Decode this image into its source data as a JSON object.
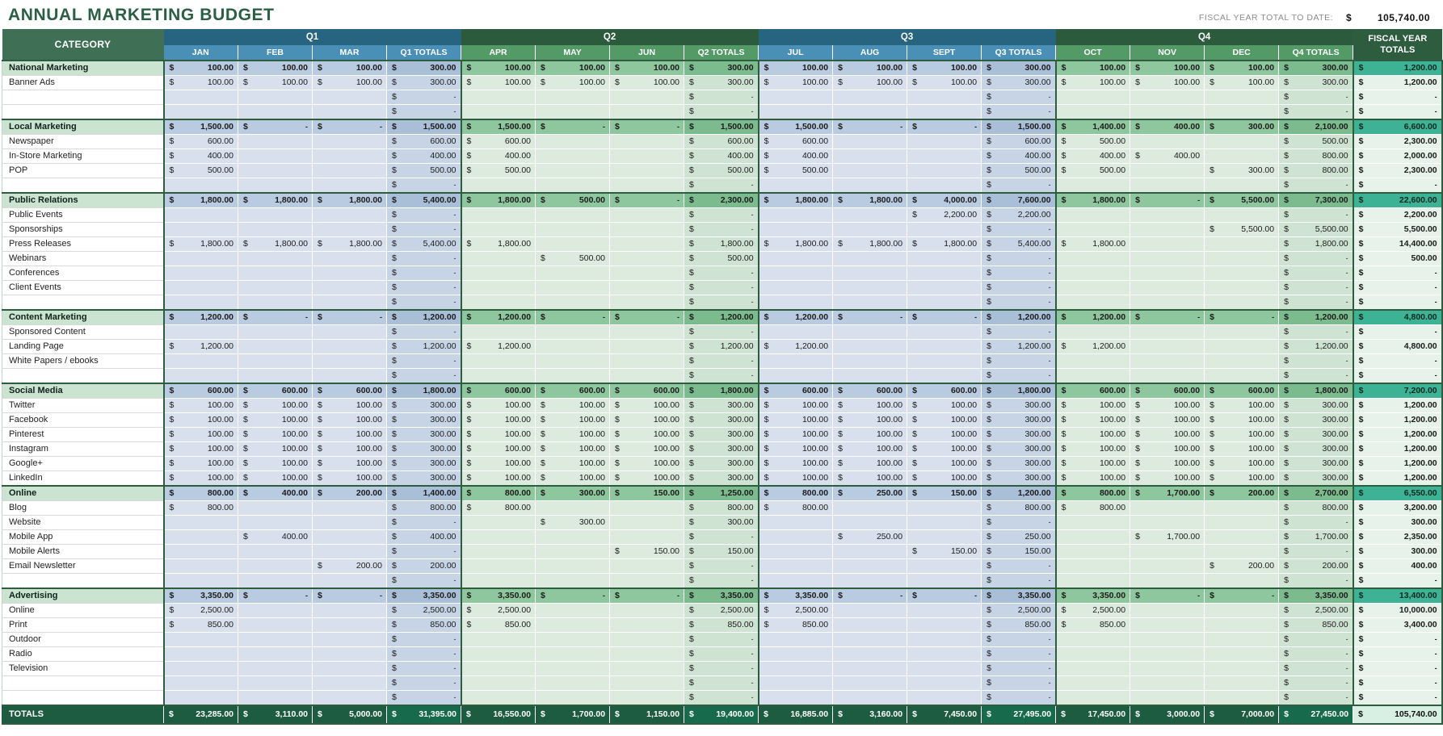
{
  "title": "ANNUAL MARKETING BUDGET",
  "currency": "$",
  "fiscal_note": {
    "label": "FISCAL YEAR TOTAL TO DATE:",
    "currency": "$",
    "value": "105,740.00"
  },
  "colors": {
    "brand_green": "#2d5c3e",
    "quarter_blue": "#26647f",
    "quarter_green": "#2b5a3c",
    "month_blue": "#4a8fb5",
    "month_green": "#539a67",
    "fiscal_teal": "#3eb295",
    "totals_row_green": "#1e5c41"
  },
  "table": {
    "header": {
      "category": "CATEGORY",
      "fiscal_col": "FISCAL YEAR TOTALS",
      "quarters": [
        {
          "label": "Q1",
          "theme": "blue",
          "months": [
            "JAN",
            "FEB",
            "MAR",
            "Q1 TOTALS"
          ]
        },
        {
          "label": "Q2",
          "theme": "green",
          "months": [
            "APR",
            "MAY",
            "JUN",
            "Q2 TOTALS"
          ]
        },
        {
          "label": "Q3",
          "theme": "blue",
          "months": [
            "JUL",
            "AUG",
            "SEPT",
            "Q3 TOTALS"
          ]
        },
        {
          "label": "Q4",
          "theme": "green",
          "months": [
            "OCT",
            "NOV",
            "DEC",
            "Q4 TOTALS"
          ]
        }
      ]
    },
    "rows": [
      {
        "label": "National Marketing",
        "type": "category",
        "cells": [
          "100.00",
          "100.00",
          "100.00",
          "300.00",
          "100.00",
          "100.00",
          "100.00",
          "300.00",
          "100.00",
          "100.00",
          "100.00",
          "300.00",
          "100.00",
          "100.00",
          "100.00",
          "300.00",
          "1,200.00"
        ]
      },
      {
        "label": "Banner Ads",
        "type": "item",
        "cells": [
          "100.00",
          "100.00",
          "100.00",
          "300.00",
          "100.00",
          "100.00",
          "100.00",
          "300.00",
          "100.00",
          "100.00",
          "100.00",
          "300.00",
          "100.00",
          "100.00",
          "100.00",
          "300.00",
          "1,200.00"
        ]
      },
      {
        "label": "",
        "type": "blank",
        "cells": [
          "",
          "",
          "",
          "-",
          "",
          "",
          "",
          "-",
          "",
          "",
          "",
          "-",
          "",
          "",
          "",
          "-",
          "-"
        ]
      },
      {
        "label": "",
        "type": "blank",
        "cells": [
          "",
          "",
          "",
          "-",
          "",
          "",
          "",
          "-",
          "",
          "",
          "",
          "-",
          "",
          "",
          "",
          "-",
          "-"
        ]
      },
      {
        "label": "Local Marketing",
        "type": "category",
        "cells": [
          "1,500.00",
          "-",
          "-",
          "1,500.00",
          "1,500.00",
          "-",
          "-",
          "1,500.00",
          "1,500.00",
          "-",
          "-",
          "1,500.00",
          "1,400.00",
          "400.00",
          "300.00",
          "2,100.00",
          "6,600.00"
        ]
      },
      {
        "label": "Newspaper",
        "type": "item",
        "cells": [
          "600.00",
          "",
          "",
          "600.00",
          "600.00",
          "",
          "",
          "600.00",
          "600.00",
          "",
          "",
          "600.00",
          "500.00",
          "",
          "",
          "500.00",
          "2,300.00"
        ]
      },
      {
        "label": "In-Store Marketing",
        "type": "item",
        "cells": [
          "400.00",
          "",
          "",
          "400.00",
          "400.00",
          "",
          "",
          "400.00",
          "400.00",
          "",
          "",
          "400.00",
          "400.00",
          "400.00",
          "",
          "800.00",
          "2,000.00"
        ]
      },
      {
        "label": "POP",
        "type": "item",
        "cells": [
          "500.00",
          "",
          "",
          "500.00",
          "500.00",
          "",
          "",
          "500.00",
          "500.00",
          "",
          "",
          "500.00",
          "500.00",
          "",
          "300.00",
          "800.00",
          "2,300.00"
        ]
      },
      {
        "label": "",
        "type": "blank",
        "cells": [
          "",
          "",
          "",
          "-",
          "",
          "",
          "",
          "-",
          "",
          "",
          "",
          "-",
          "",
          "",
          "",
          "-",
          "-"
        ]
      },
      {
        "label": "Public Relations",
        "type": "category",
        "cells": [
          "1,800.00",
          "1,800.00",
          "1,800.00",
          "5,400.00",
          "1,800.00",
          "500.00",
          "-",
          "2,300.00",
          "1,800.00",
          "1,800.00",
          "4,000.00",
          "7,600.00",
          "1,800.00",
          "-",
          "5,500.00",
          "7,300.00",
          "22,600.00"
        ]
      },
      {
        "label": "Public Events",
        "type": "item",
        "cells": [
          "",
          "",
          "",
          "-",
          "",
          "",
          "",
          "-",
          "",
          "",
          "2,200.00",
          "2,200.00",
          "",
          "",
          "",
          "-",
          "2,200.00"
        ]
      },
      {
        "label": "Sponsorships",
        "type": "item",
        "cells": [
          "",
          "",
          "",
          "-",
          "",
          "",
          "",
          "-",
          "",
          "",
          "",
          "-",
          "",
          "",
          "5,500.00",
          "5,500.00",
          "5,500.00"
        ]
      },
      {
        "label": "Press Releases",
        "type": "item",
        "cells": [
          "1,800.00",
          "1,800.00",
          "1,800.00",
          "5,400.00",
          "1,800.00",
          "",
          "",
          "1,800.00",
          "1,800.00",
          "1,800.00",
          "1,800.00",
          "5,400.00",
          "1,800.00",
          "",
          "",
          "1,800.00",
          "14,400.00"
        ]
      },
      {
        "label": "Webinars",
        "type": "item",
        "cells": [
          "",
          "",
          "",
          "-",
          "",
          "500.00",
          "",
          "500.00",
          "",
          "",
          "",
          "-",
          "",
          "",
          "",
          "-",
          "500.00"
        ]
      },
      {
        "label": "Conferences",
        "type": "item",
        "cells": [
          "",
          "",
          "",
          "-",
          "",
          "",
          "",
          "-",
          "",
          "",
          "",
          "-",
          "",
          "",
          "",
          "-",
          "-"
        ]
      },
      {
        "label": "Client Events",
        "type": "item",
        "cells": [
          "",
          "",
          "",
          "-",
          "",
          "",
          "",
          "-",
          "",
          "",
          "",
          "-",
          "",
          "",
          "",
          "-",
          "-"
        ]
      },
      {
        "label": "",
        "type": "blank",
        "cells": [
          "",
          "",
          "",
          "-",
          "",
          "",
          "",
          "-",
          "",
          "",
          "",
          "-",
          "",
          "",
          "",
          "-",
          "-"
        ]
      },
      {
        "label": "Content Marketing",
        "type": "category",
        "cells": [
          "1,200.00",
          "-",
          "-",
          "1,200.00",
          "1,200.00",
          "-",
          "-",
          "1,200.00",
          "1,200.00",
          "-",
          "-",
          "1,200.00",
          "1,200.00",
          "-",
          "-",
          "1,200.00",
          "4,800.00"
        ]
      },
      {
        "label": "Sponsored Content",
        "type": "item",
        "cells": [
          "",
          "",
          "",
          "-",
          "",
          "",
          "",
          "-",
          "",
          "",
          "",
          "-",
          "",
          "",
          "",
          "-",
          "-"
        ]
      },
      {
        "label": "Landing Page",
        "type": "item",
        "cells": [
          "1,200.00",
          "",
          "",
          "1,200.00",
          "1,200.00",
          "",
          "",
          "1,200.00",
          "1,200.00",
          "",
          "",
          "1,200.00",
          "1,200.00",
          "",
          "",
          "1,200.00",
          "4,800.00"
        ]
      },
      {
        "label": "White Papers / ebooks",
        "type": "item",
        "cells": [
          "",
          "",
          "",
          "-",
          "",
          "",
          "",
          "-",
          "",
          "",
          "",
          "-",
          "",
          "",
          "",
          "-",
          "-"
        ]
      },
      {
        "label": "",
        "type": "blank",
        "cells": [
          "",
          "",
          "",
          "-",
          "",
          "",
          "",
          "-",
          "",
          "",
          "",
          "-",
          "",
          "",
          "",
          "-",
          "-"
        ]
      },
      {
        "label": "Social Media",
        "type": "category",
        "cells": [
          "600.00",
          "600.00",
          "600.00",
          "1,800.00",
          "600.00",
          "600.00",
          "600.00",
          "1,800.00",
          "600.00",
          "600.00",
          "600.00",
          "1,800.00",
          "600.00",
          "600.00",
          "600.00",
          "1,800.00",
          "7,200.00"
        ]
      },
      {
        "label": "Twitter",
        "type": "item",
        "cells": [
          "100.00",
          "100.00",
          "100.00",
          "300.00",
          "100.00",
          "100.00",
          "100.00",
          "300.00",
          "100.00",
          "100.00",
          "100.00",
          "300.00",
          "100.00",
          "100.00",
          "100.00",
          "300.00",
          "1,200.00"
        ]
      },
      {
        "label": "Facebook",
        "type": "item",
        "cells": [
          "100.00",
          "100.00",
          "100.00",
          "300.00",
          "100.00",
          "100.00",
          "100.00",
          "300.00",
          "100.00",
          "100.00",
          "100.00",
          "300.00",
          "100.00",
          "100.00",
          "100.00",
          "300.00",
          "1,200.00"
        ]
      },
      {
        "label": "Pinterest",
        "type": "item",
        "cells": [
          "100.00",
          "100.00",
          "100.00",
          "300.00",
          "100.00",
          "100.00",
          "100.00",
          "300.00",
          "100.00",
          "100.00",
          "100.00",
          "300.00",
          "100.00",
          "100.00",
          "100.00",
          "300.00",
          "1,200.00"
        ]
      },
      {
        "label": "Instagram",
        "type": "item",
        "cells": [
          "100.00",
          "100.00",
          "100.00",
          "300.00",
          "100.00",
          "100.00",
          "100.00",
          "300.00",
          "100.00",
          "100.00",
          "100.00",
          "300.00",
          "100.00",
          "100.00",
          "100.00",
          "300.00",
          "1,200.00"
        ]
      },
      {
        "label": "Google+",
        "type": "item",
        "cells": [
          "100.00",
          "100.00",
          "100.00",
          "300.00",
          "100.00",
          "100.00",
          "100.00",
          "300.00",
          "100.00",
          "100.00",
          "100.00",
          "300.00",
          "100.00",
          "100.00",
          "100.00",
          "300.00",
          "1,200.00"
        ]
      },
      {
        "label": "LinkedIn",
        "type": "item",
        "cells": [
          "100.00",
          "100.00",
          "100.00",
          "300.00",
          "100.00",
          "100.00",
          "100.00",
          "300.00",
          "100.00",
          "100.00",
          "100.00",
          "300.00",
          "100.00",
          "100.00",
          "100.00",
          "300.00",
          "1,200.00"
        ]
      },
      {
        "label": "Online",
        "type": "category",
        "cells": [
          "800.00",
          "400.00",
          "200.00",
          "1,400.00",
          "800.00",
          "300.00",
          "150.00",
          "1,250.00",
          "800.00",
          "250.00",
          "150.00",
          "1,200.00",
          "800.00",
          "1,700.00",
          "200.00",
          "2,700.00",
          "6,550.00"
        ]
      },
      {
        "label": "Blog",
        "type": "item",
        "cells": [
          "800.00",
          "",
          "",
          "800.00",
          "800.00",
          "",
          "",
          "800.00",
          "800.00",
          "",
          "",
          "800.00",
          "800.00",
          "",
          "",
          "800.00",
          "3,200.00"
        ]
      },
      {
        "label": "Website",
        "type": "item",
        "cells": [
          "",
          "",
          "",
          "-",
          "",
          "300.00",
          "",
          "300.00",
          "",
          "",
          "",
          "-",
          "",
          "",
          "",
          "-",
          "300.00"
        ]
      },
      {
        "label": "Mobile App",
        "type": "item",
        "cells": [
          "",
          "400.00",
          "",
          "400.00",
          "",
          "",
          "",
          "-",
          "",
          "250.00",
          "",
          "250.00",
          "",
          "1,700.00",
          "",
          "1,700.00",
          "2,350.00"
        ]
      },
      {
        "label": "Mobile Alerts",
        "type": "item",
        "cells": [
          "",
          "",
          "",
          "-",
          "",
          "",
          "150.00",
          "150.00",
          "",
          "",
          "150.00",
          "150.00",
          "",
          "",
          "",
          "-",
          "300.00"
        ]
      },
      {
        "label": "Email Newsletter",
        "type": "item",
        "cells": [
          "",
          "",
          "200.00",
          "200.00",
          "",
          "",
          "",
          "-",
          "",
          "",
          "",
          "-",
          "",
          "",
          "200.00",
          "200.00",
          "400.00"
        ]
      },
      {
        "label": "",
        "type": "blank",
        "cells": [
          "",
          "",
          "",
          "-",
          "",
          "",
          "",
          "-",
          "",
          "",
          "",
          "-",
          "",
          "",
          "",
          "-",
          "-"
        ]
      },
      {
        "label": "Advertising",
        "type": "category",
        "cells": [
          "3,350.00",
          "-",
          "-",
          "3,350.00",
          "3,350.00",
          "-",
          "-",
          "3,350.00",
          "3,350.00",
          "-",
          "-",
          "3,350.00",
          "3,350.00",
          "-",
          "-",
          "3,350.00",
          "13,400.00"
        ]
      },
      {
        "label": "Online",
        "type": "item",
        "cells": [
          "2,500.00",
          "",
          "",
          "2,500.00",
          "2,500.00",
          "",
          "",
          "2,500.00",
          "2,500.00",
          "",
          "",
          "2,500.00",
          "2,500.00",
          "",
          "",
          "2,500.00",
          "10,000.00"
        ]
      },
      {
        "label": "Print",
        "type": "item",
        "cells": [
          "850.00",
          "",
          "",
          "850.00",
          "850.00",
          "",
          "",
          "850.00",
          "850.00",
          "",
          "",
          "850.00",
          "850.00",
          "",
          "",
          "850.00",
          "3,400.00"
        ]
      },
      {
        "label": "Outdoor",
        "type": "item",
        "cells": [
          "",
          "",
          "",
          "-",
          "",
          "",
          "",
          "-",
          "",
          "",
          "",
          "-",
          "",
          "",
          "",
          "-",
          "-"
        ]
      },
      {
        "label": "Radio",
        "type": "item",
        "cells": [
          "",
          "",
          "",
          "-",
          "",
          "",
          "",
          "-",
          "",
          "",
          "",
          "-",
          "",
          "",
          "",
          "-",
          "-"
        ]
      },
      {
        "label": "Television",
        "type": "item",
        "cells": [
          "",
          "",
          "",
          "-",
          "",
          "",
          "",
          "-",
          "",
          "",
          "",
          "-",
          "",
          "",
          "",
          "-",
          "-"
        ]
      },
      {
        "label": "",
        "type": "blank",
        "cells": [
          "",
          "",
          "",
          "-",
          "",
          "",
          "",
          "-",
          "",
          "",
          "",
          "-",
          "",
          "",
          "",
          "-",
          "-"
        ]
      },
      {
        "label": "",
        "type": "blank",
        "cells": [
          "",
          "",
          "",
          "-",
          "",
          "",
          "",
          "-",
          "",
          "",
          "",
          "-",
          "",
          "",
          "",
          "-",
          "-"
        ]
      }
    ],
    "totals_row": {
      "label": "TOTALS",
      "cells": [
        "23,285.00",
        "3,110.00",
        "5,000.00",
        "31,395.00",
        "16,550.00",
        "1,700.00",
        "1,150.00",
        "19,400.00",
        "16,885.00",
        "3,160.00",
        "7,450.00",
        "27,495.00",
        "17,450.00",
        "3,000.00",
        "7,000.00",
        "27,450.00",
        "105,740.00"
      ]
    }
  }
}
